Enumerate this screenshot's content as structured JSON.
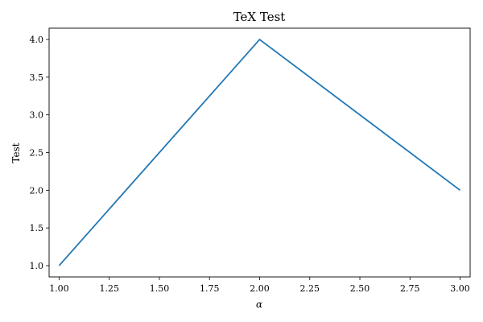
{
  "chart_data": {
    "type": "line",
    "title": "TeX Test",
    "xlabel": "α",
    "ylabel": "Test",
    "x": [
      1.0,
      2.0,
      3.0
    ],
    "series": [
      {
        "values": [
          1.0,
          4.0,
          2.0
        ],
        "color": "#1f77b4"
      }
    ],
    "xlim": [
      0.95,
      3.05
    ],
    "ylim": [
      0.85,
      4.15
    ],
    "xticks": [
      "1.00",
      "1.25",
      "1.50",
      "1.75",
      "2.00",
      "2.25",
      "2.50",
      "2.75",
      "3.00"
    ],
    "yticks": [
      "1.0",
      "1.5",
      "2.0",
      "2.5",
      "3.0",
      "3.5",
      "4.0"
    ],
    "grid": false,
    "legend": "none"
  }
}
